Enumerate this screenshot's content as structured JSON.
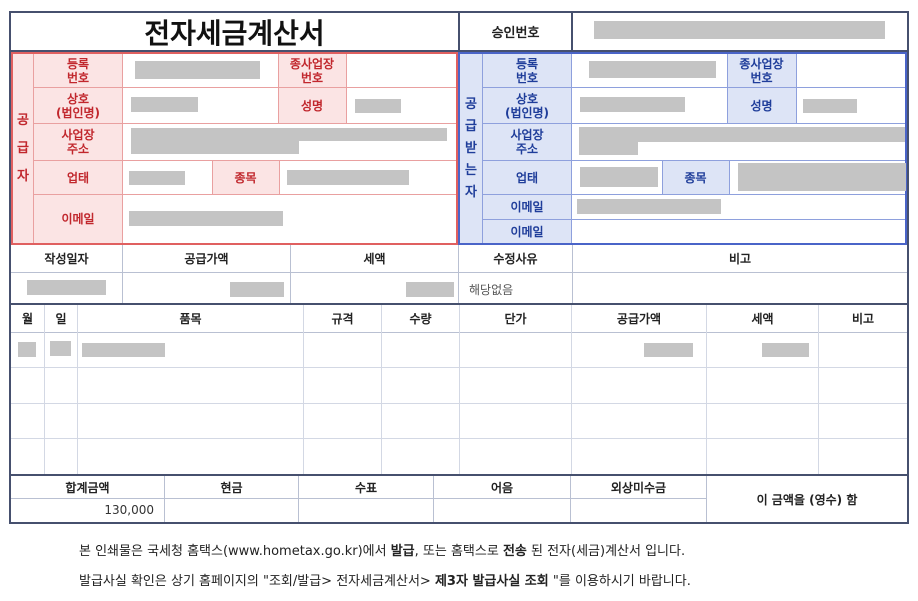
{
  "invoice": {
    "title": "전자세금계산서",
    "approval_label": "승인번호"
  },
  "supplier": {
    "side_label": "공\n급\n자",
    "reg_no_label": "등록\n번호",
    "branch_no_label": "종사업장\n번호",
    "company_label": "상호\n(법인명)",
    "name_label": "성명",
    "address_label": "사업장\n주소",
    "business_type_label": "업태",
    "business_item_label": "종목",
    "email_label": "이메일"
  },
  "recipient": {
    "side_label": "공\n급\n받\n는\n자",
    "reg_no_label": "등록\n번호",
    "branch_no_label": "종사업장\n번호",
    "company_label": "상호\n(법인명)",
    "name_label": "성명",
    "address_label": "사업장\n주소",
    "business_type_label": "업태",
    "business_item_label": "종목",
    "email_label_1": "이메일",
    "email_label_2": "이메일"
  },
  "summary": {
    "headers": {
      "date": "작성일자",
      "supply_amount": "공급가액",
      "tax": "세액",
      "revision_reason": "수정사유",
      "remarks": "비고"
    },
    "revision_reason_value": "해당없음"
  },
  "items": {
    "headers": {
      "month": "월",
      "day": "일",
      "item": "품목",
      "spec": "규격",
      "quantity": "수량",
      "unit_price": "단가",
      "supply_amount": "공급가액",
      "tax": "세액",
      "remarks": "비고"
    }
  },
  "totals": {
    "headers": {
      "total": "합계금액",
      "cash": "현금",
      "check": "수표",
      "note": "어음",
      "credit": "외상미수금"
    },
    "total_value": "130,000",
    "receipt_text": "이 금액을 (영수) 함"
  },
  "footer": {
    "line1_a": "본 인쇄물은 국세청 홈택스(www.hometax.go.kr)에서 ",
    "line1_b": "발급",
    "line1_c": ", 또는 홈택스로 ",
    "line1_d": "전송",
    "line1_e": " 된 전자(세금)계산서 입니다.",
    "line2_a": "발급사실 확인은 상기 홈페이지의 \"조회/발급> 전자세금계산서> ",
    "line2_b": "제3자 발급사실 조회",
    "line2_c": " \"를 이용하시기 바랍니다."
  },
  "colors": {
    "supplier_border": "#e06060",
    "supplier_fill": "#fbe4e4",
    "supplier_text": "#c1272d",
    "recipient_border": "#4a64c8",
    "recipient_fill": "#dde4f6",
    "recipient_text": "#1f3d9a",
    "outer_border": "#46506e",
    "redacted": "#c4c4c4"
  }
}
